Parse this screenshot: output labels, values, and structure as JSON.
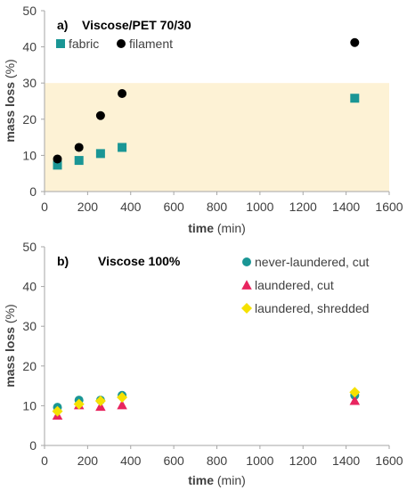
{
  "chart_data": [
    {
      "type": "scatter",
      "panel_label": "a)",
      "title": "Viscose/PET 70/30",
      "xlabel": "time",
      "xunit": "(min)",
      "ylabel": "mass loss",
      "yunit": "(%)",
      "xlim": [
        0,
        1600
      ],
      "ylim": [
        0,
        50
      ],
      "xticks": [
        0,
        200,
        400,
        600,
        800,
        1000,
        1200,
        1400,
        1600
      ],
      "yticks": [
        0,
        10,
        20,
        30,
        40,
        50
      ],
      "shaded_band": {
        "y_from": 0,
        "y_to": 30,
        "color": "#fdf2d5"
      },
      "legend_position": "top-left",
      "series": [
        {
          "name": "fabric",
          "marker": "square",
          "color": "#1a9695",
          "x": [
            60,
            160,
            260,
            360,
            1440
          ],
          "y": [
            7.3,
            8.6,
            10.5,
            12.2,
            25.8
          ]
        },
        {
          "name": "filament",
          "marker": "circle",
          "color": "#000000",
          "x": [
            60,
            160,
            260,
            360,
            1440
          ],
          "y": [
            9.0,
            12.2,
            21.0,
            27.1,
            41.2
          ]
        }
      ]
    },
    {
      "type": "scatter",
      "panel_label": "b)",
      "title": "Viscose 100%",
      "xlabel": "time",
      "xunit": "(min)",
      "ylabel": "mass loss",
      "yunit": "(%)",
      "xlim": [
        0,
        1600
      ],
      "ylim": [
        0,
        50
      ],
      "xticks": [
        0,
        200,
        400,
        600,
        800,
        1000,
        1200,
        1400,
        1600
      ],
      "yticks": [
        0,
        10,
        20,
        30,
        40,
        50
      ],
      "legend_position": "top-right",
      "series": [
        {
          "name": "never-laundered, cut",
          "marker": "circle",
          "color": "#1a9695",
          "x": [
            60,
            160,
            260,
            360,
            1440
          ],
          "y": [
            9.6,
            11.4,
            11.4,
            12.6,
            12.6
          ]
        },
        {
          "name": "laundered, cut",
          "marker": "triangle",
          "color": "#e8245f",
          "x": [
            60,
            160,
            260,
            360,
            1440
          ],
          "y": [
            7.6,
            10.2,
            9.8,
            10.2,
            11.3
          ]
        },
        {
          "name": "laundered, shredded",
          "marker": "diamond",
          "color": "#f5e100",
          "x": [
            60,
            160,
            260,
            360,
            1440
          ],
          "y": [
            8.6,
            10.4,
            11.2,
            12.1,
            13.4
          ]
        }
      ]
    }
  ]
}
